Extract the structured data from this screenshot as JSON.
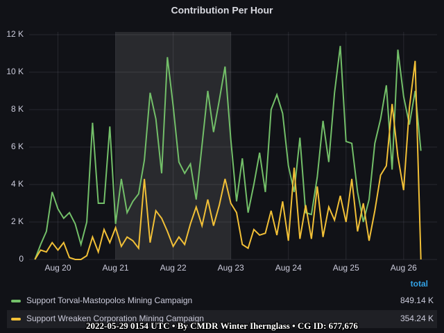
{
  "chart_data": {
    "type": "line",
    "title": "Contribution Per Hour",
    "x": [
      19.6,
      19.7,
      19.8,
      19.9,
      20.0,
      20.1,
      20.2,
      20.3,
      20.4,
      20.5,
      20.6,
      20.7,
      20.8,
      20.9,
      21.0,
      21.1,
      21.2,
      21.3,
      21.4,
      21.5,
      21.6,
      21.7,
      21.8,
      21.9,
      22.0,
      22.1,
      22.2,
      22.3,
      22.4,
      22.5,
      22.6,
      22.7,
      22.8,
      22.9,
      23.0,
      23.1,
      23.2,
      23.3,
      23.4,
      23.5,
      23.6,
      23.7,
      23.8,
      23.9,
      24.0,
      24.1,
      24.2,
      24.3,
      24.4,
      24.5,
      24.6,
      24.7,
      24.8,
      24.9,
      25.0,
      25.1,
      25.2,
      25.3,
      25.4,
      25.5,
      25.6,
      25.7,
      25.8,
      25.9,
      26.0,
      26.1,
      26.2,
      26.3
    ],
    "series": [
      {
        "name": "Support Torval-Mastopolos Mining Campaign",
        "color": "#73bf69",
        "total": {
          "value": 849140,
          "label": "849.14 K"
        },
        "values": [
          0,
          800,
          1500,
          3600,
          2700,
          2200,
          2500,
          1900,
          800,
          2000,
          7300,
          3000,
          3000,
          7100,
          1900,
          4300,
          2500,
          3100,
          3500,
          5300,
          8900,
          7500,
          4600,
          10800,
          8200,
          5200,
          4600,
          5100,
          3200,
          6100,
          9000,
          6800,
          8500,
          10300,
          6400,
          3100,
          5400,
          2500,
          4000,
          5700,
          3600,
          8000,
          8800,
          7800,
          5000,
          3600,
          6500,
          2500,
          2400,
          4400,
          7400,
          5200,
          8900,
          11400,
          6300,
          6200,
          3600,
          2000,
          3200,
          6200,
          7500,
          9300,
          4800,
          11200,
          8700,
          7200,
          9000,
          5800
        ]
      },
      {
        "name": "Support Wreaken Corporation Mining Campaign",
        "color": "#f2c037",
        "total": {
          "value": 354240,
          "label": "354.24 K"
        },
        "values": [
          0,
          500,
          400,
          900,
          500,
          900,
          100,
          0,
          0,
          200,
          1200,
          400,
          1600,
          900,
          1700,
          700,
          1200,
          1000,
          600,
          4300,
          900,
          2600,
          2200,
          1500,
          700,
          1200,
          800,
          1900,
          2800,
          1800,
          3200,
          1800,
          2900,
          4300,
          3000,
          2500,
          800,
          600,
          1600,
          1300,
          1400,
          2600,
          1300,
          3100,
          1000,
          4900,
          1100,
          2900,
          1100,
          3900,
          1200,
          2800,
          2100,
          3400,
          2000,
          4300,
          1500,
          3000,
          1000,
          2600,
          4500,
          5000,
          8300,
          5500,
          3700,
          8100,
          10600,
          0
        ]
      }
    ],
    "xlim": [
      19.5,
      26.58
    ],
    "xticks": [
      {
        "value": 20,
        "label": "Aug 20"
      },
      {
        "value": 21,
        "label": "Aug 21"
      },
      {
        "value": 22,
        "label": "Aug 22"
      },
      {
        "value": 23,
        "label": "Aug 23"
      },
      {
        "value": 24,
        "label": "Aug 24"
      },
      {
        "value": 25,
        "label": "Aug 25"
      },
      {
        "value": 26,
        "label": "Aug 26"
      }
    ],
    "ylim": [
      0,
      12000
    ],
    "yticks": [
      0,
      {
        "value": 2000,
        "label": "2 K"
      },
      {
        "value": 4000,
        "label": "4 K"
      },
      {
        "value": 6000,
        "label": "6 K"
      },
      {
        "value": 8000,
        "label": "8 K"
      },
      {
        "value": 10000,
        "label": "10 K"
      },
      {
        "value": 12000,
        "label": "12 K"
      }
    ],
    "highlight": [
      21,
      23
    ],
    "grid": true,
    "legend_header": "total"
  },
  "footer": "2022-05-29 0154 UTC • By CMDR Winter Ihernglass • CG ID: 677,676"
}
